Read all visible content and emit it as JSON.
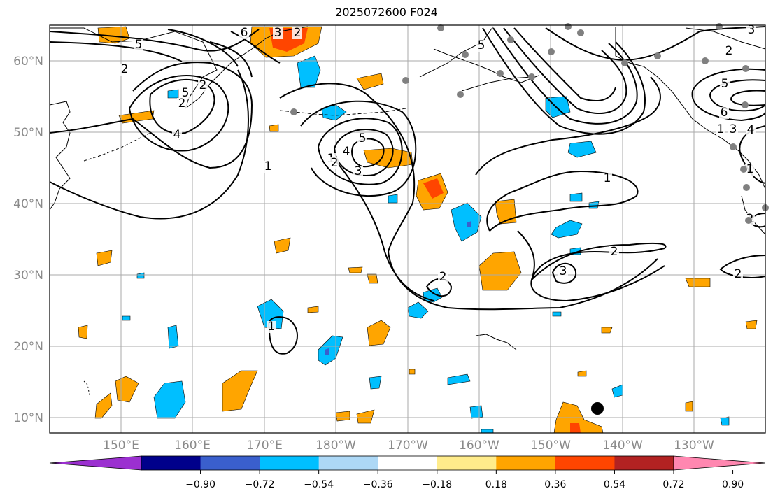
{
  "title": "2025072600 F024",
  "latitude_labels": [
    "60°N",
    "50°N",
    "40°N",
    "30°N",
    "20°N",
    "10°N"
  ],
  "longitude_labels": [
    "150°E",
    "160°E",
    "170°E",
    "180°W",
    "170°W",
    "160°W",
    "150°W",
    "140°W",
    "130°W"
  ],
  "colorbar": {
    "tick_labels": [
      "−0.90",
      "−0.72",
      "−0.54",
      "−0.36",
      "−0.18",
      "0.18",
      "0.36",
      "0.54",
      "0.72",
      "0.90"
    ],
    "colors": [
      "#9b30d0",
      "#00008b",
      "#3a5fcd",
      "#00bfff",
      "#add8f6",
      "#ffffff",
      "#ffec8b",
      "#ffa500",
      "#ff4500",
      "#b22222",
      "#ff87b0"
    ]
  },
  "contour_labels": [
    "6",
    "3",
    "2",
    "5",
    "2",
    "5",
    "2",
    "4",
    "1",
    "1",
    "2",
    "4",
    "5",
    "2",
    "3",
    "1",
    "2",
    "3",
    "1",
    "2",
    "2",
    "3",
    "2",
    "6",
    "5",
    "4",
    "1",
    "2",
    "5",
    "3",
    "1"
  ],
  "colors": {
    "contour": "#000000",
    "coastline": "#000000",
    "grid": "#aaaaaa",
    "station_gray": "#808080",
    "marker_black": "#000000"
  }
}
